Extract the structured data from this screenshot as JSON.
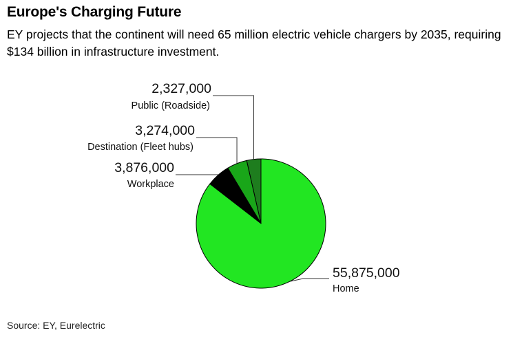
{
  "title": "Europe's Charging Future",
  "subtitle": "EY projects that the continent will need 65 million electric vehicle chargers by 2035, requiring $134 billion in infrastructure investment.",
  "source": "Source: EY, Eurelectric",
  "chart_data": {
    "type": "pie",
    "slices": [
      {
        "label": "Public (Roadside)",
        "value": 2327000,
        "value_text": "2,327,000",
        "color": "#1e7d1e"
      },
      {
        "label": "Destination (Fleet hubs)",
        "value": 3274000,
        "value_text": "3,274,000",
        "color": "#19a619"
      },
      {
        "label": "Workplace",
        "value": 3876000,
        "value_text": "3,876,000",
        "color": "#000000"
      },
      {
        "label": "Home",
        "value": 55875000,
        "value_text": "55,875,000",
        "color": "#22e622"
      }
    ],
    "start": "12 o'clock",
    "direction": "counterclockwise",
    "legend": "none"
  }
}
